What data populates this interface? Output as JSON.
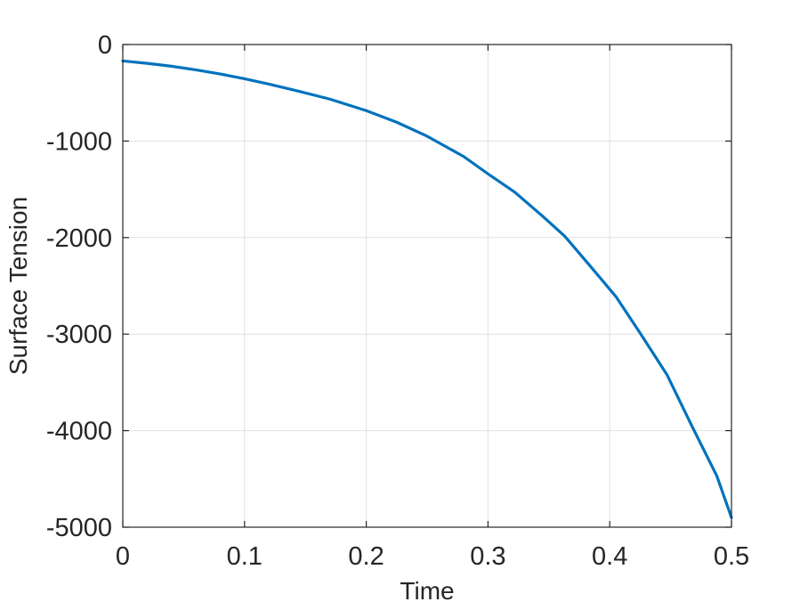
{
  "chart_data": {
    "type": "line",
    "title": "",
    "xlabel": "Time",
    "ylabel": "Surface Tension",
    "xlim": [
      0,
      0.5
    ],
    "ylim": [
      -5000,
      0
    ],
    "xticks": [
      0,
      0.1,
      0.2,
      0.3,
      0.4,
      0.5
    ],
    "xtick_labels": [
      "0",
      "0.1",
      "0.2",
      "0.3",
      "0.4",
      "0.5"
    ],
    "yticks": [
      0,
      -1000,
      -2000,
      -3000,
      -4000,
      -5000
    ],
    "ytick_labels": [
      "0",
      "-1000",
      "-2000",
      "-3000",
      "-4000",
      "-5000"
    ],
    "grid": true,
    "legend": "none",
    "series": [
      {
        "color": "#0072BD",
        "x": [
          0,
          0.02,
          0.04,
          0.06,
          0.08,
          0.1,
          0.12,
          0.14,
          0.17,
          0.2,
          0.225,
          0.25,
          0.28,
          0.3,
          0.322,
          0.345,
          0.363,
          0.385,
          0.405,
          0.425,
          0.447,
          0.467,
          0.488,
          0.5
        ],
        "y": [
          -170,
          -195,
          -225,
          -262,
          -305,
          -355,
          -410,
          -470,
          -565,
          -685,
          -805,
          -950,
          -1160,
          -1340,
          -1530,
          -1780,
          -1985,
          -2310,
          -2610,
          -2990,
          -3420,
          -3940,
          -4470,
          -4900
        ]
      }
    ]
  }
}
